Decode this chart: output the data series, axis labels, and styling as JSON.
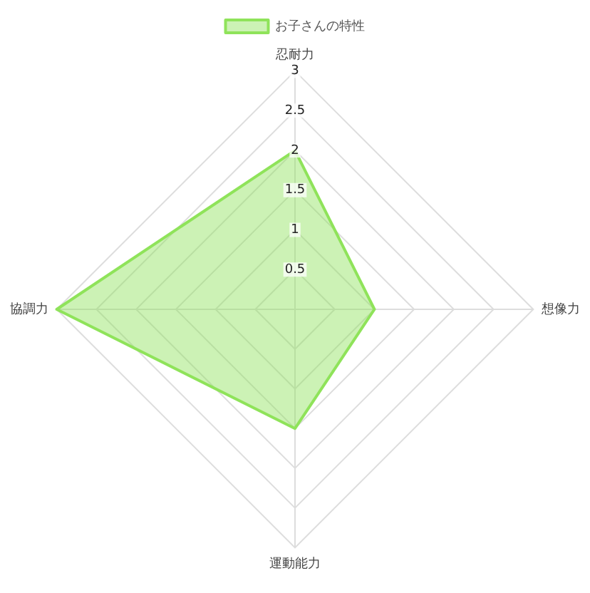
{
  "chart_data": {
    "type": "radar",
    "categories": [
      "忍耐力",
      "想像力",
      "運動能力",
      "協調力"
    ],
    "series": [
      {
        "name": "お子さんの特性",
        "color": "#8fe35a",
        "values": [
          2,
          1,
          1.5,
          3
        ]
      }
    ],
    "ylim": [
      0,
      3
    ],
    "yticks": [
      0.5,
      1,
      1.5,
      2,
      2.5,
      3
    ],
    "grid": true,
    "legend": "top",
    "marker": "none"
  }
}
